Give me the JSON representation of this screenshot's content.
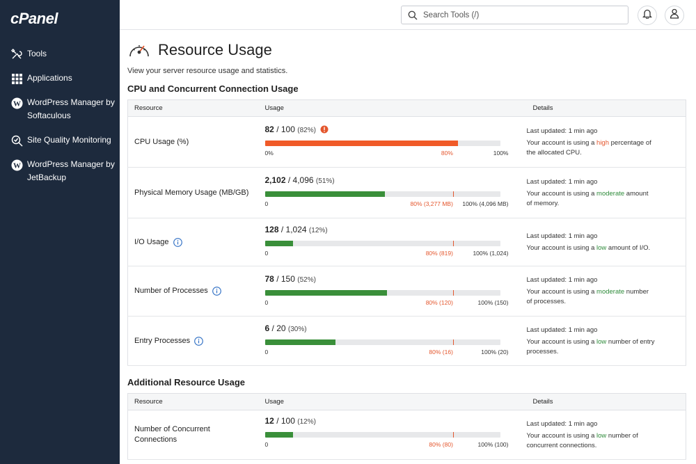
{
  "app": {
    "logo": "cPanel"
  },
  "sidebar": {
    "items": [
      {
        "label": "Tools",
        "icon": "tools-icon"
      },
      {
        "label": "Applications",
        "icon": "grid-icon"
      },
      {
        "label": "WordPress Manager by Softaculous",
        "icon": "wordpress-icon"
      },
      {
        "label": "Site Quality Monitoring",
        "icon": "search-check-icon"
      },
      {
        "label": "WordPress Manager by JetBackup",
        "icon": "wordpress-icon"
      }
    ]
  },
  "topbar": {
    "search": {
      "placeholder": "Search Tools (/)",
      "value": ""
    },
    "icons": [
      "bell-icon",
      "user-icon"
    ]
  },
  "page": {
    "title": "Resource Usage",
    "subtitle": "View your server resource usage and statistics."
  },
  "sections": [
    {
      "title": "CPU and Concurrent Connection Usage",
      "headers": {
        "resource": "Resource",
        "usage": "Usage",
        "details": "Details"
      },
      "rows": [
        {
          "name": "CPU Usage (%)",
          "info": false,
          "used": "82",
          "total": "100",
          "pct_label": "(82%)",
          "alert": true,
          "fraction": 0.82,
          "status": "high",
          "scale_min": "0%",
          "scale_warn": "80%",
          "scale_max": "100%",
          "updated": "Last updated: 1 min ago",
          "msg_pre": "Your account is using a ",
          "level": "high",
          "msg_post": " percentage of the allocated CPU."
        },
        {
          "name": "Physical Memory Usage (MB/GB)",
          "info": false,
          "used": "2,102",
          "total": "4,096",
          "pct_label": "(51%)",
          "alert": false,
          "fraction": 0.51,
          "status": "moderate",
          "scale_min": "0",
          "scale_warn": "80% (3,277 MB)",
          "scale_max": "100% (4,096 MB)",
          "updated": "Last updated: 1 min ago",
          "msg_pre": "Your account is using a ",
          "level": "moderate",
          "msg_post": " amount of memory."
        },
        {
          "name": "I/O Usage",
          "info": true,
          "used": "128",
          "total": "1,024",
          "pct_label": "(12%)",
          "alert": false,
          "fraction": 0.12,
          "status": "low",
          "scale_min": "0",
          "scale_warn": "80% (819)",
          "scale_max": "100% (1,024)",
          "updated": "Last updated: 1 min ago",
          "msg_pre": "Your account is using a ",
          "level": "low",
          "msg_post": " amount of I/O."
        },
        {
          "name": "Number of Processes",
          "info": true,
          "used": "78",
          "total": "150",
          "pct_label": "(52%)",
          "alert": false,
          "fraction": 0.52,
          "status": "moderate",
          "scale_min": "0",
          "scale_warn": "80% (120)",
          "scale_max": "100% (150)",
          "updated": "Last updated: 1 min ago",
          "msg_pre": "Your account is using a ",
          "level": "moderate",
          "msg_post": " number of processes."
        },
        {
          "name": "Entry Processes",
          "info": true,
          "used": "6",
          "total": "20",
          "pct_label": "(30%)",
          "alert": false,
          "fraction": 0.3,
          "status": "low",
          "scale_min": "0",
          "scale_warn": "80% (16)",
          "scale_max": "100% (20)",
          "updated": "Last updated: 1 min ago",
          "msg_pre": "Your account is using a ",
          "level": "low",
          "msg_post": " number of entry processes."
        }
      ]
    },
    {
      "title": "Additional Resource Usage",
      "headers": {
        "resource": "Resource",
        "usage": "Usage",
        "details": "Details"
      },
      "rows": [
        {
          "name": "Number of Concurrent Connections",
          "info": false,
          "used": "12",
          "total": "100",
          "pct_label": "(12%)",
          "alert": false,
          "fraction": 0.12,
          "status": "low",
          "scale_min": "0",
          "scale_warn": "80% (80)",
          "scale_max": "100% (100)",
          "updated": "Last updated: 1 min ago",
          "msg_pre": "Your account is using a ",
          "level": "low",
          "msg_post": " number of concurrent connections."
        }
      ]
    }
  ],
  "colors": {
    "high": "#f05a28",
    "moderate": "#3a8f3a",
    "low": "#3a8f3a",
    "warn_tick": "#e4572e",
    "sidebar": "#1d2a3d"
  }
}
